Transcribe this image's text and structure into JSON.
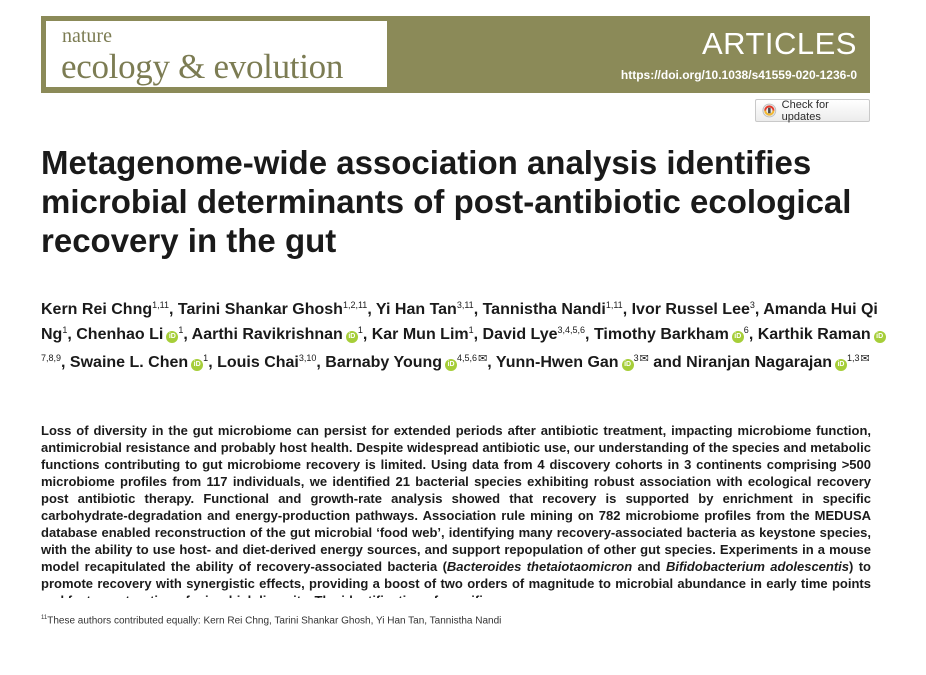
{
  "journal": {
    "line1": "nature",
    "line2": "ecology & evolution"
  },
  "section_label": "ARTICLES",
  "doi": "https://doi.org/10.1038/s41559-020-1236-0",
  "check_updates": {
    "label": "Check for updates"
  },
  "title": "Metagenome-wide association analysis identifies microbial determinants of post-antibiotic ecological recovery in the gut",
  "authors": [
    {
      "name": "Kern Rei Chng",
      "sup": "1,11",
      "orcid": false,
      "mail": false,
      "sep": ", "
    },
    {
      "name": "Tarini Shankar Ghosh",
      "sup": "1,2,11",
      "orcid": false,
      "mail": false,
      "sep": ", "
    },
    {
      "name": "Yi Han Tan",
      "sup": "3,11",
      "orcid": false,
      "mail": false,
      "sep": ", "
    },
    {
      "name": "Tannistha Nandi",
      "sup": "1,11",
      "orcid": false,
      "mail": false,
      "sep": ", "
    },
    {
      "name": "Ivor Russel Lee",
      "sup": "3",
      "orcid": false,
      "mail": false,
      "sep": ", "
    },
    {
      "name": "Amanda Hui Qi Ng",
      "sup": "1",
      "orcid": false,
      "mail": false,
      "sep": ", "
    },
    {
      "name": "Chenhao Li",
      "sup": "1",
      "orcid": true,
      "mail": false,
      "sep": ", "
    },
    {
      "name": "Aarthi Ravikrishnan",
      "sup": "1",
      "orcid": true,
      "mail": false,
      "sep": ", "
    },
    {
      "name": "Kar Mun Lim",
      "sup": "1",
      "orcid": false,
      "mail": false,
      "sep": ", "
    },
    {
      "name": "David Lye",
      "sup": "3,4,5,6",
      "orcid": false,
      "mail": false,
      "sep": ", "
    },
    {
      "name": "Timothy Barkham",
      "sup": "6",
      "orcid": true,
      "mail": false,
      "sep": ", "
    },
    {
      "name": "Karthik Raman",
      "sup": "7,8,9",
      "orcid": true,
      "mail": false,
      "sep": ", "
    },
    {
      "name": "Swaine L. Chen",
      "sup": "1",
      "orcid": true,
      "mail": false,
      "sep": ", "
    },
    {
      "name": "Louis Chai",
      "sup": "3,10",
      "orcid": false,
      "mail": false,
      "sep": ", "
    },
    {
      "name": "Barnaby Young",
      "sup": "4,5,6",
      "orcid": true,
      "mail": true,
      "sep": ", "
    },
    {
      "name": "Yunn-Hwen Gan",
      "sup": "3",
      "orcid": true,
      "mail": true,
      "sep": " and "
    },
    {
      "name": "Niranjan Nagarajan",
      "sup": "1,3",
      "orcid": true,
      "mail": true,
      "sep": ""
    }
  ],
  "abstract": [
    {
      "t": "Loss of diversity in the gut microbiome can persist for extended periods after antibiotic treatment, impacting microbiome function, antimicrobial resistance and probably host health. Despite widespread antibiotic use, our understanding of the species and metabolic functions contributing to gut microbiome recovery is limited. Using data from 4 discovery cohorts in 3 continents comprising >500 microbiome profiles from 117 individuals, we identified 21 bacterial species exhibiting robust association with ecological recovery post antibiotic therapy. Functional and growth-rate analysis showed that recovery is supported by enrichment in specific carbohydrate-degradation and energy-production pathways. Association rule mining on 782 microbiome profiles from the MEDUSA database enabled reconstruction of the gut microbial ‘food web’, identifying many recovery-associated bacteria as keystone species, with the ability to use host- and diet-derived energy sources, and support repopulation of other gut species. Experiments in a mouse model recapitulated the ability of recovery-associated bacteria (",
      "i": false
    },
    {
      "t": "Bacteroides thetaiotaomicron",
      "i": true
    },
    {
      "t": " and ",
      "i": false
    },
    {
      "t": "Bifidobacterium adolescentis",
      "i": true
    },
    {
      "t": ") to promote recovery with synergistic effects, providing a boost of two orders of magnitude to microbial abundance in early time points and faster maturation of microbial diversity. The identification of specific",
      "i": false
    }
  ],
  "footnote": {
    "mark": "11",
    "text": "These authors contributed equally: Kern Rei Chng, Tarini Shankar Ghosh, Yi Han Tan, Tannistha Nandi"
  },
  "colors": {
    "banner": "#8b8a58",
    "journal_text": "#7c7c53",
    "orcid": "#a6ce39"
  }
}
